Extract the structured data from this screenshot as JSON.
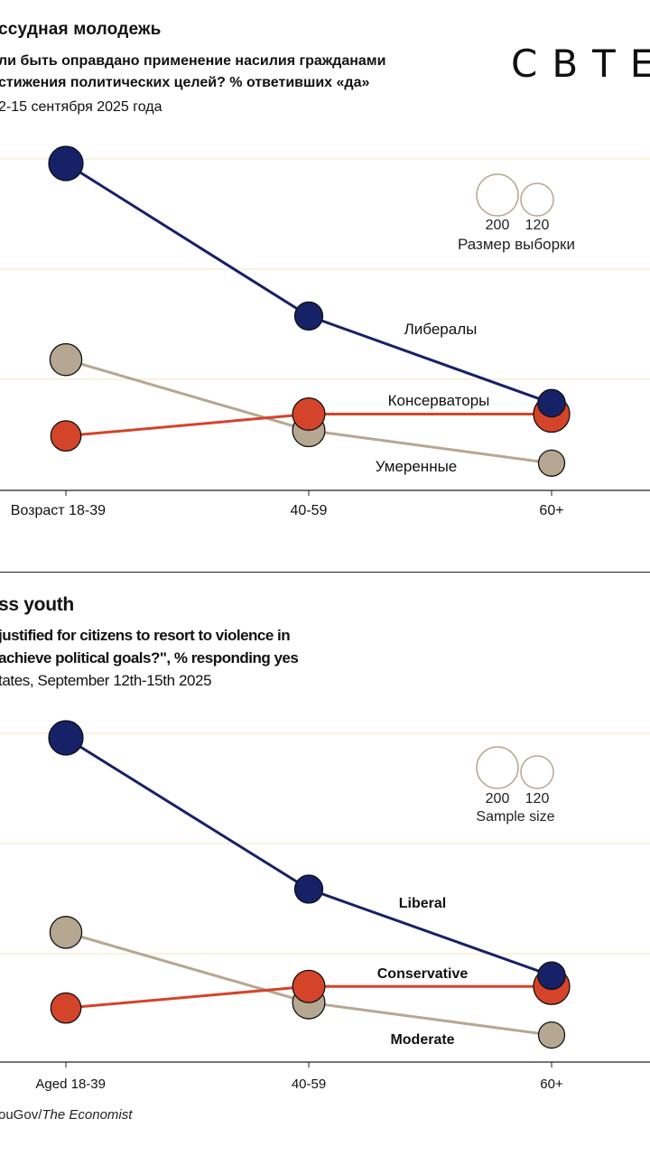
{
  "ru": {
    "title": "ссудная молодежь",
    "subtitle_line1": "ли быть оправдано применение насилия гражданами",
    "subtitle_line2": "стижения политических целей? % ответивших «да»",
    "date": "2-15 сентября 2025 года",
    "brand": "СВТЕ",
    "size_legend": {
      "big": "200",
      "small": "120",
      "label": "Размер выборки"
    }
  },
  "en": {
    "title": "ss youth",
    "subtitle_line1": "justified for citizens to resort to violence in",
    "subtitle_line2": "achieve political goals?\", % responding yes",
    "date": "tates, September 12th-15th 2025",
    "size_legend": {
      "big": "200",
      "small": "120",
      "label": "Sample size"
    },
    "source_prefix": "ouGov/",
    "source_italic": "The Economist"
  },
  "chart_data": [
    {
      "type": "scatter",
      "title": "ссудная молодежь",
      "categories": [
        "Возраст 18-39",
        "40-59",
        "60+"
      ],
      "gridlines": 3,
      "grid": true,
      "series": [
        {
          "name": "Либералы",
          "color": "#172168",
          "values": [
            30,
            16,
            8
          ],
          "sizes": [
            180,
            120,
            115
          ]
        },
        {
          "name": "Консерваторы",
          "color": "#d4442a",
          "values": [
            5,
            7,
            7
          ],
          "sizes": [
            140,
            160,
            200
          ]
        },
        {
          "name": "Умеренные",
          "color": "#b5a791",
          "values": [
            12,
            5.5,
            2.5
          ],
          "sizes": [
            155,
            160,
            105
          ]
        }
      ]
    },
    {
      "type": "scatter",
      "title": "ss youth",
      "categories": [
        "Aged 18-39",
        "40-59",
        "60+"
      ],
      "gridlines": 3,
      "grid": true,
      "series": [
        {
          "name": "Liberal",
          "color": "#172168",
          "values": [
            30,
            16,
            8
          ],
          "sizes": [
            180,
            120,
            115
          ]
        },
        {
          "name": "Conservative",
          "color": "#d4442a",
          "values": [
            5,
            7,
            7
          ],
          "sizes": [
            140,
            160,
            200
          ]
        },
        {
          "name": "Moderate",
          "color": "#b5a791",
          "values": [
            12,
            5.5,
            2.5
          ],
          "sizes": [
            155,
            160,
            105
          ]
        }
      ]
    }
  ]
}
